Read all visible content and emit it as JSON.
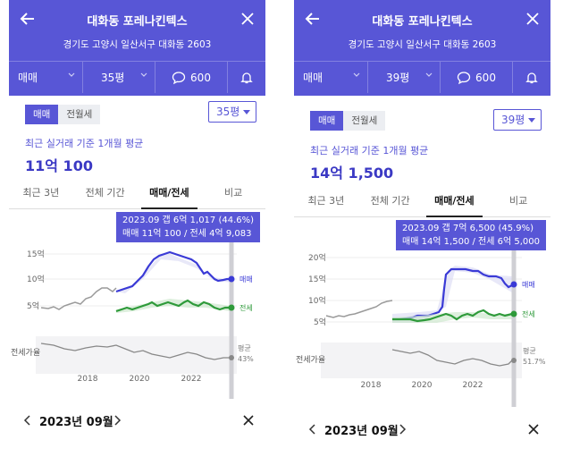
{
  "panels": [
    {
      "title": "대화동 포레나킨텍스",
      "address": "경기도 고양시 일산서구 대화동 2603",
      "deal_type": "매매",
      "size": "35평",
      "comment_count": "600",
      "segment": [
        "매매",
        "전월세"
      ],
      "size_select": "35평",
      "avg_label": "최근 실거래 기준 1개월 평균",
      "avg_value": "11억 100",
      "tabs": [
        "최근 3년",
        "전체 기간",
        "매매/전세",
        "비교"
      ],
      "tooltip_line1": "2023.09  갭 6억 1,017 (44.6%)",
      "tooltip_line2": "매매 11억 100 / 전세 4억 9,083",
      "y_ticks": [
        "15억",
        "10억",
        "5억"
      ],
      "ratio_label": "전세가율",
      "x_ticks": [
        "2018",
        "2020",
        "2022"
      ],
      "series_labels": {
        "sale": "매매",
        "jeonse": "전세"
      },
      "avg_tag": "평균",
      "avg_pct": "43%",
      "footer_date": "2023년 09월"
    },
    {
      "title": "대화동 포레나킨텍스",
      "address": "경기도 고양시 일산서구 대화동 2603",
      "deal_type": "매매",
      "size": "39평",
      "comment_count": "600",
      "segment": [
        "매매",
        "전월세"
      ],
      "size_select": "39평",
      "avg_label": "최근 실거래 기준 1개월 평균",
      "avg_value": "14억 1,500",
      "tabs": [
        "최근 3년",
        "전체 기간",
        "매매/전세",
        "비교"
      ],
      "tooltip_line1": "2023.09  갭 7억 6,500 (45.9%)",
      "tooltip_line2": "매매 14억 1,500 / 전세 6억 5,000",
      "y_ticks": [
        "20억",
        "15억",
        "10억",
        "5억"
      ],
      "ratio_label": "전세가율",
      "x_ticks": [
        "2018",
        "2020",
        "2022"
      ],
      "series_labels": {
        "sale": "매매",
        "jeonse": "전세"
      },
      "avg_tag": "평균",
      "avg_pct": "51.7%",
      "footer_date": "2023년 09월"
    }
  ],
  "colors": {
    "header": "#5856d6",
    "sale": "#3a3ad6",
    "jeonse": "#2e9a3a",
    "market": "#9a9a9a",
    "ratio": "#888888"
  }
}
